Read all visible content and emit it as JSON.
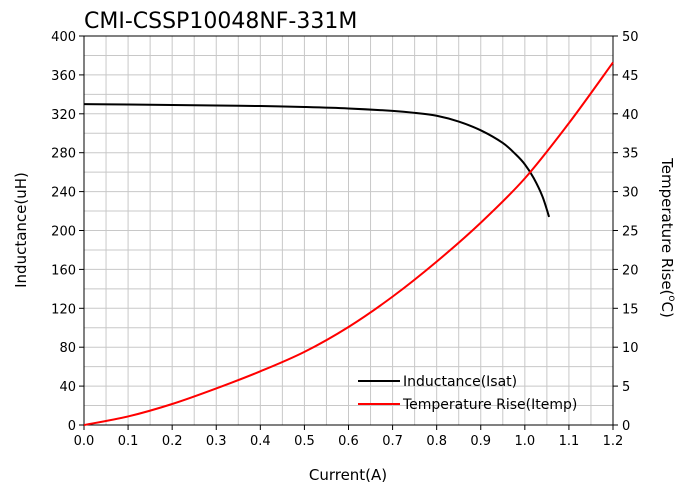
{
  "chart_data": {
    "type": "line",
    "title": "CMI-CSSP10048NF-331M",
    "xlabel": "Current(A)",
    "ylabel": "Inductance(uH)",
    "y2label_main": "Temperature Rise(",
    "y2label_sup": "o",
    "y2label_end": "C)",
    "xlim": [
      0,
      1.2
    ],
    "ylim": [
      0,
      400
    ],
    "y2lim": [
      0,
      50
    ],
    "grid": true,
    "legend_position": "bottom-right",
    "x_ticks": [
      "0.0",
      "0.1",
      "0.2",
      "0.3",
      "0.4",
      "0.5",
      "0.6",
      "0.7",
      "0.8",
      "0.9",
      "1.0",
      "1.1",
      "1.2"
    ],
    "y_ticks": [
      "0",
      "40",
      "80",
      "120",
      "160",
      "200",
      "240",
      "280",
      "320",
      "360",
      "400"
    ],
    "y2_ticks": [
      "0",
      "5",
      "10",
      "15",
      "20",
      "25",
      "30",
      "35",
      "40",
      "45",
      "50"
    ],
    "series": [
      {
        "name": "Inductance(Isat)",
        "axis": "left",
        "color": "#000000",
        "x": [
          0,
          0.1,
          0.2,
          0.3,
          0.4,
          0.5,
          0.6,
          0.7,
          0.75,
          0.8,
          0.85,
          0.9,
          0.95,
          0.98,
          1.0,
          1.02,
          1.04,
          1.055
        ],
        "y": [
          330,
          329.5,
          329,
          328.5,
          328,
          327,
          325.5,
          323,
          321,
          318,
          312,
          303,
          290,
          278,
          268,
          254,
          235,
          214
        ]
      },
      {
        "name": "Temperature Rise(Itemp)",
        "axis": "right",
        "color": "#ff0000",
        "x": [
          0,
          0.1,
          0.2,
          0.3,
          0.4,
          0.5,
          0.6,
          0.7,
          0.8,
          0.9,
          1.0,
          1.1,
          1.2
        ],
        "y": [
          0,
          1.1,
          2.7,
          4.7,
          6.9,
          9.4,
          12.6,
          16.5,
          21.0,
          26.0,
          31.7,
          38.8,
          46.6
        ]
      }
    ]
  }
}
